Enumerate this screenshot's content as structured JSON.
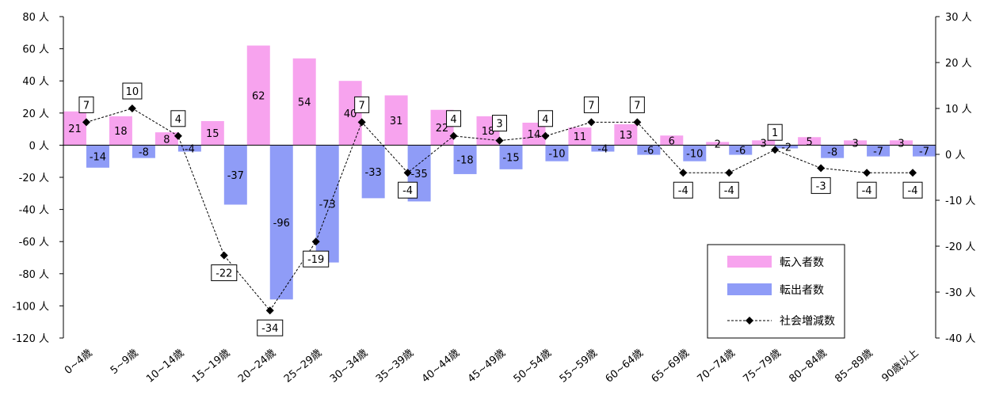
{
  "chart_data": {
    "type": "bar",
    "categories": [
      "0~4歳",
      "5~9歳",
      "10~14歳",
      "15~19歳",
      "20~24歳",
      "25~29歳",
      "30~34歳",
      "35~39歳",
      "40~44歳",
      "45~49歳",
      "50~54歳",
      "55~59歳",
      "60~64歳",
      "65~69歳",
      "70~74歳",
      "75~79歳",
      "80~84歳",
      "85~89歳",
      "90歳以上"
    ],
    "series": [
      {
        "name": "転入者数",
        "type": "bar",
        "axis": "left",
        "color": "#f7a3ee",
        "values": [
          21,
          18,
          8,
          15,
          62,
          54,
          40,
          31,
          22,
          18,
          14,
          11,
          13,
          6,
          2,
          3,
          5,
          3,
          3
        ]
      },
      {
        "name": "転出者数",
        "type": "bar",
        "axis": "left",
        "color": "#8f9cf7",
        "values": [
          -14,
          -8,
          -4,
          -37,
          -96,
          -73,
          -33,
          -35,
          -18,
          -15,
          -10,
          -4,
          -6,
          -10,
          -6,
          -2,
          -8,
          -7,
          -7
        ]
      },
      {
        "name": "社会増減数",
        "type": "line",
        "axis": "right",
        "color": "#000000",
        "values": [
          7,
          10,
          4,
          -22,
          -34,
          -19,
          7,
          -4,
          4,
          3,
          4,
          7,
          7,
          -4,
          -4,
          1,
          -3,
          -4,
          -4
        ]
      }
    ],
    "ylim_left": [
      -120,
      80
    ],
    "ylim_right": [
      -40,
      30
    ],
    "left_ticks": [
      "80 人",
      "60 人",
      "40 人",
      "20 人",
      "0 人",
      "-20 人",
      "-40 人",
      "-60 人",
      "-80 人",
      "-100 人",
      "-120 人"
    ],
    "right_ticks": [
      "30 人",
      "20 人",
      "10 人",
      "0 人",
      "-10 人",
      "-20 人",
      "-30 人",
      "-40 人"
    ],
    "legend_position": "bottom-right",
    "grid": false
  }
}
